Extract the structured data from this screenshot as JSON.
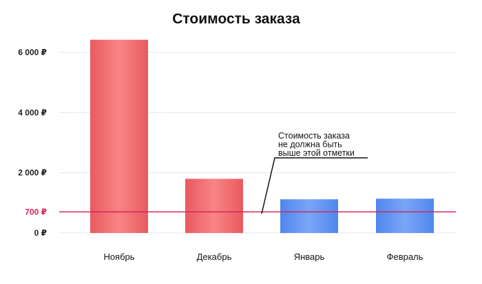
{
  "chart_data": {
    "type": "bar",
    "title": "Стоимость заказа",
    "xlabel": "",
    "ylabel": "",
    "categories": [
      "Ноябрь",
      "Декабрь",
      "Январь",
      "Февраль"
    ],
    "values": [
      6420,
      1800,
      1120,
      1140
    ],
    "bar_colors": [
      "#f06a6e",
      "#f06a6e",
      "#5b8ff0",
      "#5b8ff0"
    ],
    "ylim": [
      0,
      6000
    ],
    "yticks": [
      {
        "value": 0,
        "label": "0 ₽"
      },
      {
        "value": 2000,
        "label": "2 000 ₽"
      },
      {
        "value": 4000,
        "label": "4 000 ₽"
      },
      {
        "value": 6000,
        "label": "6 000 ₽"
      }
    ],
    "grid": true,
    "reference_line": {
      "value": 700,
      "label": "700 ₽",
      "color": "#d6245a"
    },
    "annotation": {
      "lines": [
        "Стоимость заказа",
        "не должна быть",
        "выше этой отметки"
      ]
    }
  }
}
